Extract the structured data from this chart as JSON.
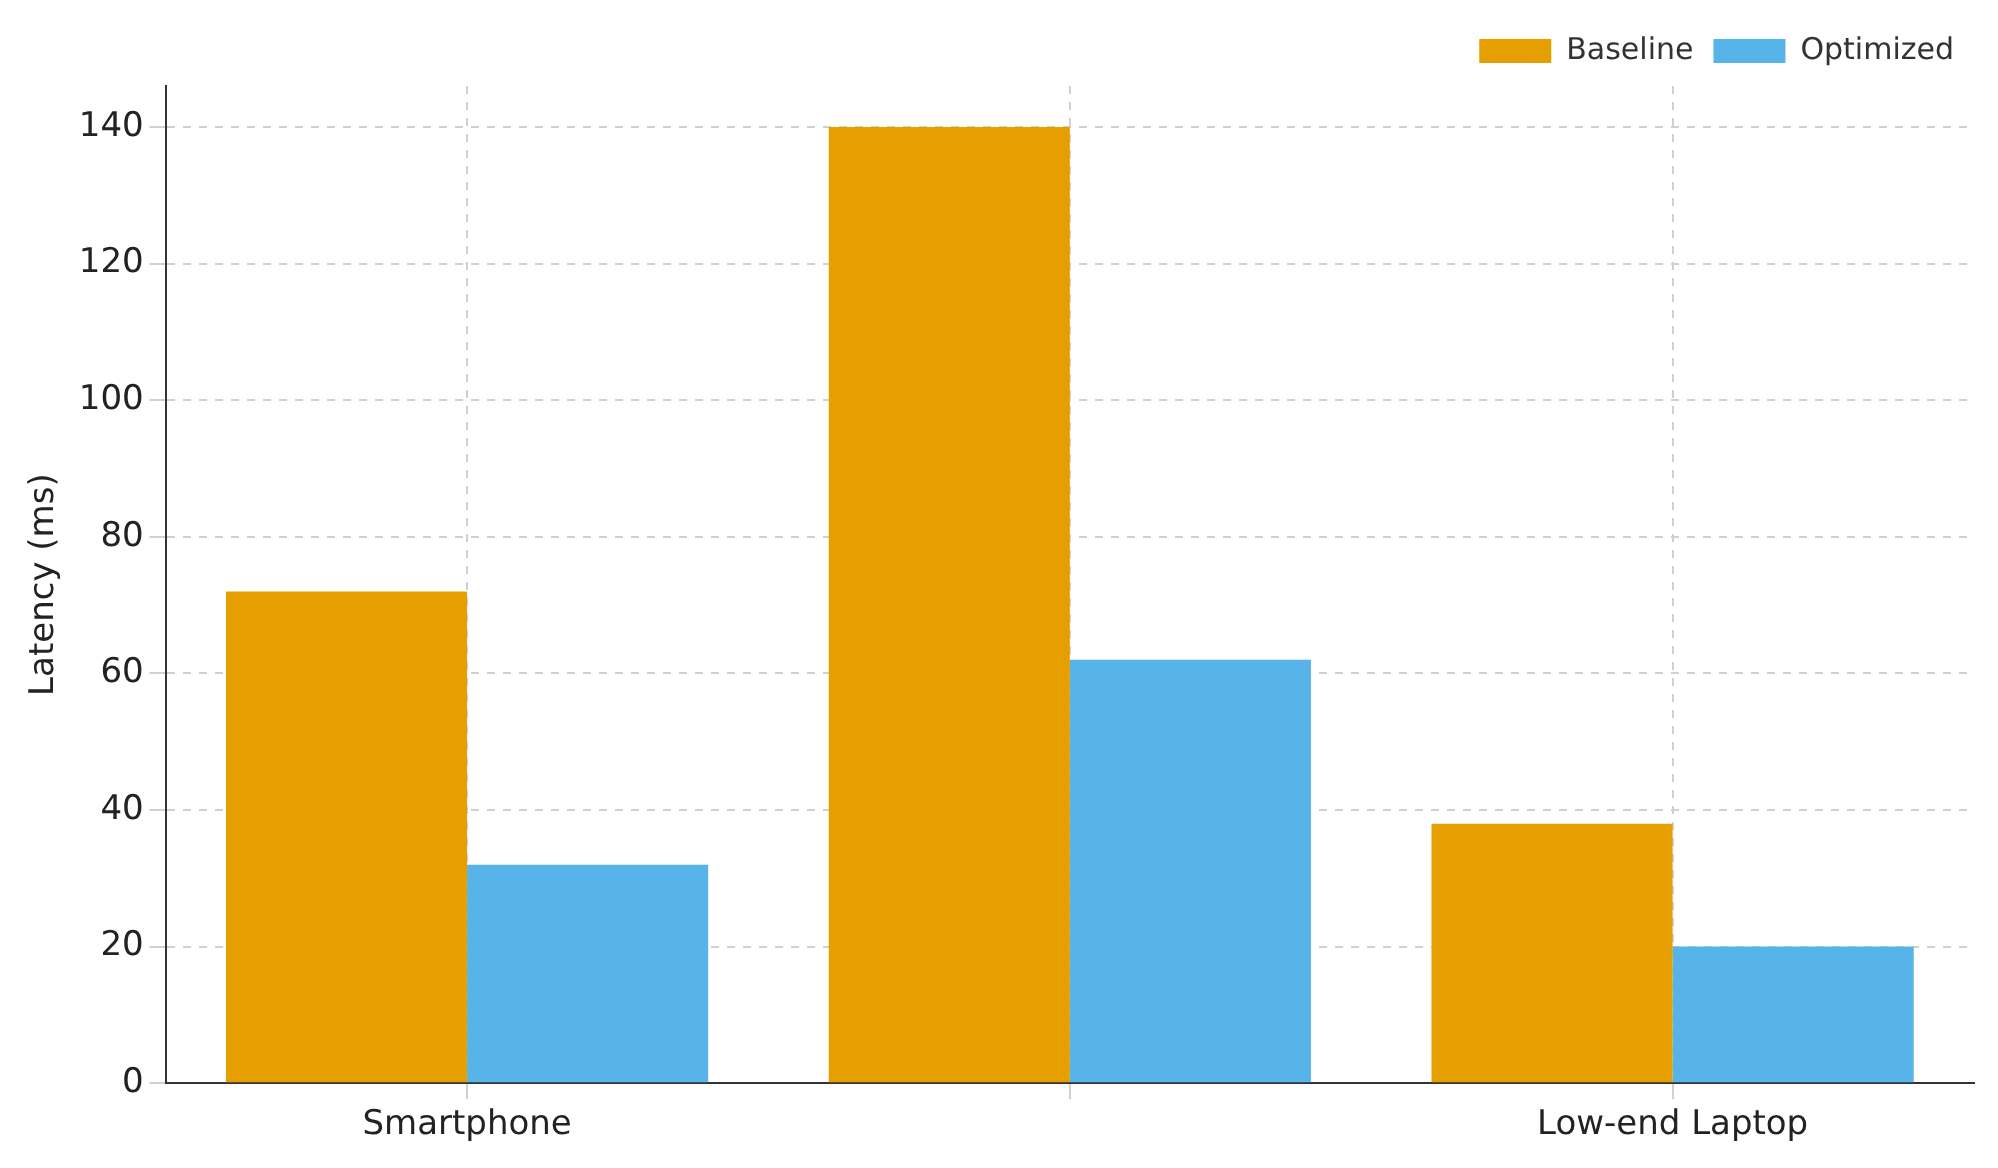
{
  "chart_data": {
    "type": "bar",
    "ylabel": "Latency (ms)",
    "categories": [
      "Smartphone",
      null,
      "Low-end Laptop"
    ],
    "series": [
      {
        "name": "Baseline",
        "color": "#e69f00",
        "values": [
          72,
          140,
          38
        ]
      },
      {
        "name": "Optimized",
        "color": "#56b4e9",
        "values": [
          32,
          62,
          20
        ]
      }
    ],
    "ylim": [
      0,
      146
    ],
    "yticks": [
      0,
      20,
      40,
      60,
      80,
      100,
      120,
      140
    ],
    "grid": true,
    "legend": "top right"
  }
}
